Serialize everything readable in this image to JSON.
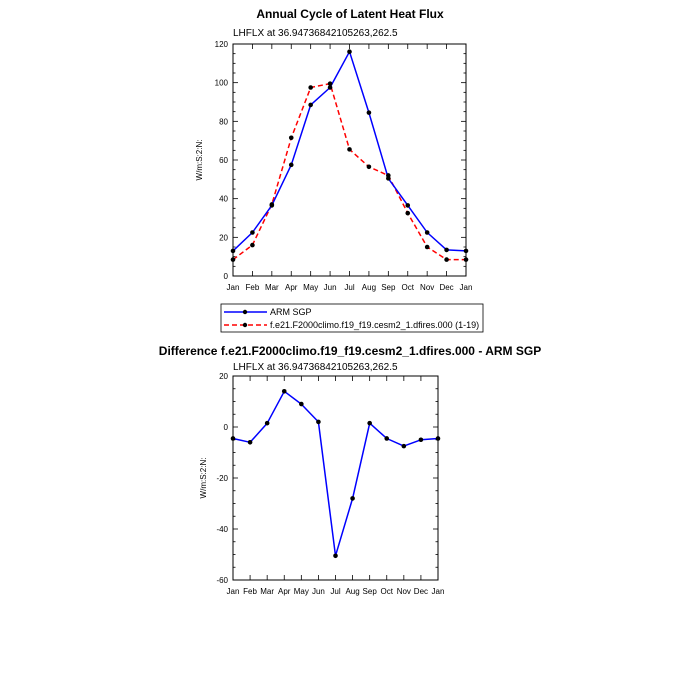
{
  "chart_data": [
    {
      "type": "line",
      "title": "Annual Cycle of Latent Heat Flux",
      "subtitle": "LHFLX at 36.94736842105263,262.5",
      "ylabel": "W/m:S:2:N:",
      "xlabel": "",
      "ylim": [
        0,
        120
      ],
      "yticks": [
        0,
        20,
        40,
        60,
        80,
        100,
        120
      ],
      "categories": [
        "Jan",
        "Feb",
        "Mar",
        "Apr",
        "May",
        "Jun",
        "Jul",
        "Aug",
        "Sep",
        "Oct",
        "Nov",
        "Dec",
        "Jan"
      ],
      "series": [
        {
          "name": "ARM SGP",
          "color": "#0000ff",
          "dash": "solid",
          "values": [
            13,
            22.5,
            36.5,
            57.5,
            88.5,
            97.5,
            116,
            84.5,
            50.5,
            36.5,
            22.5,
            13.5,
            13
          ]
        },
        {
          "name": "f.e21.F2000climo.f19_f19.cesm2_1.dfires.000 (1-19)",
          "color": "#ff0000",
          "dash": "dashed",
          "values": [
            8.5,
            16,
            37,
            71.5,
            97.5,
            99.5,
            65.5,
            56.5,
            52,
            32.5,
            15,
            8.5,
            8.5
          ]
        }
      ],
      "legend": "bottom"
    },
    {
      "type": "line",
      "title": "Difference f.e21.F2000climo.f19_f19.cesm2_1.dfires.000 - ARM SGP",
      "subtitle": "LHFLX at 36.94736842105263,262.5",
      "ylabel": "W/m:S:2:N:",
      "xlabel": "",
      "ylim": [
        -60,
        20
      ],
      "yticks": [
        -60,
        -40,
        -20,
        0,
        20
      ],
      "categories": [
        "Jan",
        "Feb",
        "Mar",
        "Apr",
        "May",
        "Jun",
        "Jul",
        "Aug",
        "Sep",
        "Oct",
        "Nov",
        "Dec",
        "Jan"
      ],
      "series": [
        {
          "name": "Difference",
          "color": "#0000ff",
          "dash": "solid",
          "values": [
            -4.5,
            -6,
            1.5,
            14,
            9,
            2,
            -50.5,
            -28,
            1.5,
            -4.5,
            -7.5,
            -5,
            -4.5
          ]
        }
      ]
    }
  ]
}
